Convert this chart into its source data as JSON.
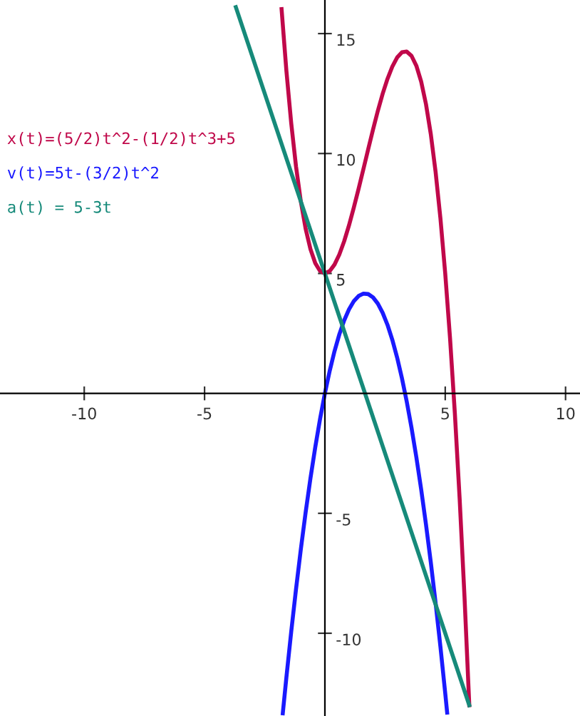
{
  "chart_data": {
    "type": "line",
    "xlim": [
      -13.5,
      10.6
    ],
    "ylim": [
      -13.45,
      16.4
    ],
    "xticks": [
      -10,
      -5,
      5,
      10
    ],
    "yticks": [
      -10,
      -5,
      5,
      10,
      15
    ],
    "grid": false,
    "legend": false,
    "marker": "none",
    "line_style": "solid",
    "series": [
      {
        "name": "x(t)=(5/2)t^2-(1/2)t^3+5",
        "color": "#c0084a",
        "x": [
          -1.8,
          -1.6,
          -1.4,
          -1.2,
          -1.0,
          -0.8,
          -0.6,
          -0.4,
          -0.2,
          0,
          0.2,
          0.4,
          0.6,
          0.8,
          1.0,
          1.2,
          1.4,
          1.6,
          1.8,
          2.0,
          2.2,
          2.4,
          2.6,
          2.8,
          3.0,
          3.2,
          3.4,
          3.6,
          3.8,
          4.0,
          4.2,
          4.4,
          4.6,
          4.8,
          5.0,
          5.2,
          5.4,
          5.6,
          5.8,
          6.0
        ],
        "values": [
          16.02,
          13.45,
          11.27,
          9.46,
          8,
          6.86,
          6.01,
          5.43,
          5.1,
          5,
          5.1,
          5.37,
          5.79,
          6.34,
          7,
          7.74,
          8.53,
          9.35,
          10.18,
          11,
          11.78,
          12.49,
          13.11,
          13.62,
          14,
          14.22,
          14.25,
          14.07,
          13.66,
          13,
          12.06,
          10.81,
          9.23,
          7.3,
          5,
          2.3,
          -0.83,
          -4.41,
          -8.46,
          -13
        ]
      },
      {
        "name": "v(t)=5t-(3/2)t^2",
        "color": "#1a1aff",
        "x": [
          -1.75,
          -1.6,
          -1.4,
          -1.2,
          -1.0,
          -0.8,
          -0.6,
          -0.4,
          -0.2,
          0,
          0.2,
          0.4,
          0.6,
          0.8,
          1.0,
          1.2,
          1.4,
          1.6,
          1.8,
          2.0,
          2.2,
          2.4,
          2.6,
          2.8,
          3.0,
          3.2,
          3.4,
          3.6,
          3.8,
          4.0,
          4.2,
          4.4,
          4.6,
          4.8,
          5.0,
          5.08
        ],
        "values": [
          -13.34,
          -11.84,
          -9.94,
          -8.16,
          -6.5,
          -4.96,
          -3.54,
          -2.24,
          -1.06,
          0,
          0.94,
          1.76,
          2.46,
          3.04,
          3.5,
          3.84,
          4.06,
          4.16,
          4.14,
          4,
          3.74,
          3.36,
          2.86,
          2.24,
          1.5,
          0.64,
          -0.34,
          -1.44,
          -2.66,
          -4,
          -5.46,
          -7.04,
          -8.74,
          -10.56,
          -12.5,
          -13.31
        ]
      },
      {
        "name": "a(t) = 5-3t",
        "color": "#168a7a",
        "x": [
          -3.7,
          6.0
        ],
        "values": [
          16.1,
          -13
        ]
      }
    ]
  }
}
